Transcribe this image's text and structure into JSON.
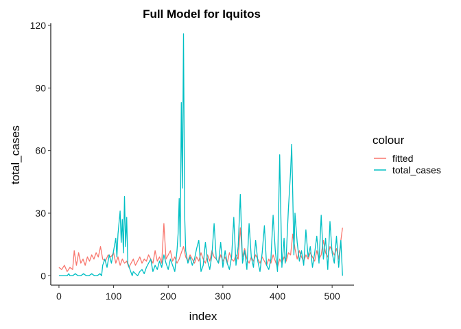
{
  "chart_data": {
    "type": "line",
    "title": "Full Model for Iquitos",
    "xlabel": "index",
    "ylabel": "total_cases",
    "xlim": [
      -15,
      540
    ],
    "ylim": [
      -4.5,
      121
    ],
    "x_ticks": [
      0,
      100,
      200,
      300,
      400,
      500
    ],
    "y_ticks": [
      0,
      30,
      60,
      90,
      120
    ],
    "grid": false,
    "legend": {
      "title": "colour",
      "position": "right"
    },
    "series": [
      {
        "name": "fitted",
        "color": "#F8766D",
        "x": [
          0,
          5,
          10,
          15,
          20,
          25,
          28,
          32,
          36,
          40,
          44,
          48,
          52,
          56,
          60,
          64,
          68,
          72,
          76,
          80,
          85,
          90,
          95,
          100,
          104,
          108,
          112,
          116,
          120,
          124,
          128,
          132,
          136,
          140,
          144,
          148,
          152,
          156,
          160,
          164,
          168,
          172,
          176,
          180,
          184,
          188,
          192,
          196,
          200,
          204,
          208,
          212,
          216,
          220,
          224,
          228,
          232,
          236,
          240,
          244,
          248,
          252,
          256,
          260,
          264,
          268,
          272,
          276,
          280,
          284,
          288,
          292,
          296,
          300,
          304,
          308,
          312,
          316,
          320,
          324,
          328,
          332,
          336,
          340,
          344,
          348,
          352,
          356,
          360,
          364,
          368,
          372,
          376,
          380,
          384,
          388,
          392,
          396,
          400,
          404,
          408,
          412,
          416,
          420,
          424,
          428,
          432,
          436,
          440,
          444,
          448,
          452,
          456,
          460,
          464,
          468,
          472,
          476,
          480,
          484,
          488,
          492,
          496,
          500,
          504,
          508,
          512,
          516,
          519
        ],
        "y": [
          4,
          3,
          5,
          2,
          4,
          3,
          12,
          5,
          11,
          6,
          8,
          5,
          9,
          7,
          10,
          8,
          11,
          9,
          14,
          8,
          7,
          10,
          9,
          11,
          6,
          9,
          5,
          8,
          6,
          7,
          4,
          6,
          8,
          5,
          7,
          9,
          6,
          8,
          7,
          10,
          8,
          6,
          12,
          7,
          9,
          6,
          25,
          8,
          10,
          12,
          7,
          9,
          6,
          8,
          11,
          14,
          9,
          7,
          10,
          8,
          6,
          9,
          7,
          11,
          8,
          6,
          10,
          7,
          12,
          9,
          8,
          6,
          10,
          7,
          9,
          6,
          11,
          8,
          7,
          10,
          8,
          23,
          9,
          13,
          8,
          6,
          9,
          7,
          10,
          8,
          6,
          9,
          7,
          5,
          8,
          6,
          10,
          7,
          4,
          8,
          6,
          9,
          7,
          11,
          10,
          20,
          13,
          8,
          12,
          9,
          7,
          10,
          8,
          11,
          9,
          7,
          12,
          8,
          10,
          17,
          11,
          9,
          14,
          12,
          10,
          13,
          8,
          17,
          23
        ]
      },
      {
        "name": "total_cases",
        "color": "#00BFC4",
        "x": [
          0,
          5,
          10,
          15,
          18,
          20,
          25,
          30,
          35,
          40,
          45,
          50,
          55,
          60,
          65,
          70,
          75,
          78,
          80,
          84,
          88,
          92,
          96,
          100,
          104,
          106,
          108,
          112,
          114,
          116,
          118,
          120,
          122,
          124,
          126,
          130,
          134,
          136,
          140,
          144,
          148,
          152,
          156,
          160,
          164,
          168,
          172,
          176,
          180,
          184,
          188,
          192,
          196,
          200,
          204,
          208,
          212,
          216,
          218,
          220,
          222,
          224,
          226,
          228,
          230,
          232,
          236,
          240,
          244,
          248,
          252,
          256,
          260,
          264,
          268,
          272,
          276,
          280,
          284,
          288,
          292,
          296,
          300,
          304,
          308,
          312,
          316,
          320,
          324,
          328,
          332,
          336,
          340,
          344,
          348,
          352,
          356,
          360,
          364,
          368,
          372,
          376,
          380,
          384,
          388,
          392,
          396,
          400,
          404,
          408,
          412,
          414,
          416,
          420,
          424,
          426,
          428,
          430,
          432,
          436,
          440,
          444,
          448,
          452,
          456,
          460,
          464,
          468,
          472,
          476,
          480,
          484,
          488,
          492,
          496,
          500,
          504,
          508,
          512,
          516,
          519
        ],
        "y": [
          0,
          0,
          0,
          0,
          1,
          0,
          0,
          1,
          0,
          0,
          1,
          0,
          0,
          1,
          0,
          0,
          1,
          0,
          5,
          8,
          4,
          10,
          6,
          12,
          18,
          9,
          20,
          31,
          16,
          27,
          11,
          38,
          14,
          28,
          6,
          3,
          0,
          2,
          1,
          0,
          2,
          3,
          1,
          4,
          6,
          8,
          2,
          5,
          3,
          7,
          4,
          10,
          6,
          3,
          8,
          5,
          2,
          12,
          20,
          37,
          14,
          83,
          42,
          116,
          30,
          12,
          6,
          9,
          5,
          8,
          13,
          17,
          2,
          5,
          16,
          7,
          3,
          10,
          25,
          8,
          6,
          16,
          4,
          12,
          6,
          3,
          9,
          28,
          5,
          14,
          39,
          6,
          12,
          3,
          25,
          9,
          4,
          17,
          7,
          2,
          11,
          24,
          5,
          3,
          8,
          29,
          12,
          2,
          58,
          4,
          18,
          6,
          9,
          32,
          50,
          63,
          38,
          10,
          30,
          16,
          7,
          12,
          5,
          22,
          9,
          14,
          4,
          11,
          19,
          6,
          29,
          8,
          18,
          3,
          26,
          11,
          6,
          19,
          4,
          17,
          0
        ]
      }
    ]
  }
}
